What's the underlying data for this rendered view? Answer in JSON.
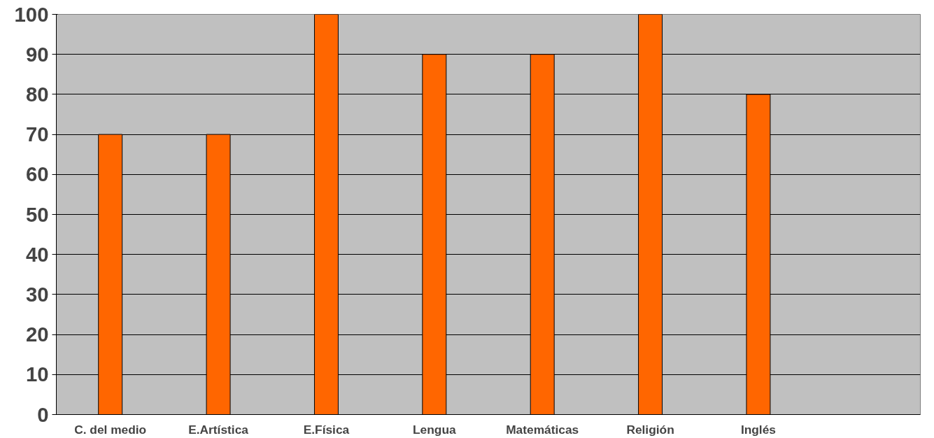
{
  "chart_data": {
    "type": "bar",
    "categories": [
      "C. del medio",
      "E.Artística",
      "E.Física",
      "Lengua",
      "Matemáticas",
      "Religión",
      "Inglés",
      null
    ],
    "values": [
      70,
      70,
      100,
      90,
      90,
      100,
      80,
      null
    ],
    "color": "#ff6600",
    "ylim": [
      0,
      100
    ],
    "yticks": [
      0,
      10,
      20,
      30,
      40,
      50,
      60,
      70,
      80,
      90,
      100
    ],
    "grid": "y"
  }
}
